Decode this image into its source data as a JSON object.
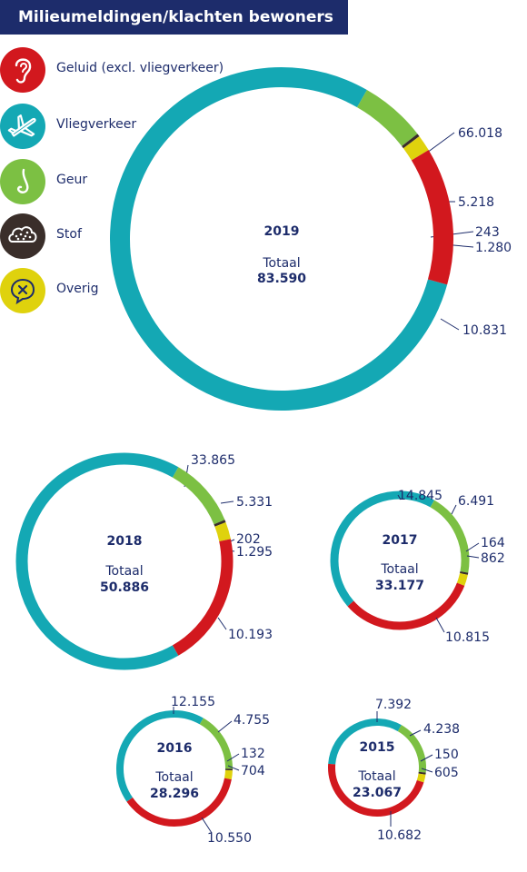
{
  "title": "Milieumeldingen/klachten bewoners",
  "legend": [
    {
      "key": "geluid",
      "label": "Geluid (excl. vliegverkeer)",
      "color": "#d2181e",
      "icon": "ear-icon"
    },
    {
      "key": "vlieg",
      "label": "Vliegverkeer",
      "color": "#14a8b4",
      "icon": "airplane-icon"
    },
    {
      "key": "geur",
      "label": "Geur",
      "color": "#7cc043",
      "icon": "nose-icon"
    },
    {
      "key": "stof",
      "label": "Stof",
      "color": "#3a2e2a",
      "icon": "dust-cloud-icon"
    },
    {
      "key": "overig",
      "label": "Overig",
      "color": "#dfd20d",
      "icon": "speech-bubble-x-icon"
    }
  ],
  "total_label": "Totaal",
  "chart_data": [
    {
      "type": "pie",
      "year": "2019",
      "total": "83.590",
      "series": [
        {
          "name": "Vliegverkeer",
          "value": 66018,
          "label": "66.018"
        },
        {
          "name": "Geur",
          "value": 5218,
          "label": "5.218"
        },
        {
          "name": "Stof",
          "value": 243,
          "label": "243"
        },
        {
          "name": "Overig",
          "value": 1280,
          "label": "1.280"
        },
        {
          "name": "Geluid (excl. vliegverkeer)",
          "value": 10831,
          "label": "10.831"
        }
      ]
    },
    {
      "type": "pie",
      "year": "2018",
      "total": "50.886",
      "series": [
        {
          "name": "Vliegverkeer",
          "value": 33865,
          "label": "33.865"
        },
        {
          "name": "Geur",
          "value": 5331,
          "label": "5.331"
        },
        {
          "name": "Stof",
          "value": 202,
          "label": "202"
        },
        {
          "name": "Overig",
          "value": 1295,
          "label": "1.295"
        },
        {
          "name": "Geluid (excl. vliegverkeer)",
          "value": 10193,
          "label": "10.193"
        }
      ]
    },
    {
      "type": "pie",
      "year": "2017",
      "total": "33.177",
      "series": [
        {
          "name": "Vliegverkeer",
          "value": 14845,
          "label": "14.845"
        },
        {
          "name": "Geur",
          "value": 6491,
          "label": "6.491"
        },
        {
          "name": "Stof",
          "value": 164,
          "label": "164"
        },
        {
          "name": "Overig",
          "value": 862,
          "label": "862"
        },
        {
          "name": "Geluid (excl. vliegverkeer)",
          "value": 10815,
          "label": "10.815"
        }
      ]
    },
    {
      "type": "pie",
      "year": "2016",
      "total": "28.296",
      "series": [
        {
          "name": "Vliegverkeer",
          "value": 12155,
          "label": "12.155"
        },
        {
          "name": "Geur",
          "value": 4755,
          "label": "4.755"
        },
        {
          "name": "Stof",
          "value": 132,
          "label": "132"
        },
        {
          "name": "Overig",
          "value": 704,
          "label": "704"
        },
        {
          "name": "Geluid (excl. vliegverkeer)",
          "value": 10550,
          "label": "10.550"
        }
      ]
    },
    {
      "type": "pie",
      "year": "2015",
      "total": "23.067",
      "series": [
        {
          "name": "Vliegverkeer",
          "value": 7392,
          "label": "7.392"
        },
        {
          "name": "Geur",
          "value": 4238,
          "label": "4.238"
        },
        {
          "name": "Stof",
          "value": 150,
          "label": "150"
        },
        {
          "name": "Overig",
          "value": 605,
          "label": "605"
        },
        {
          "name": "Geluid (excl. vliegverkeer)",
          "value": 10682,
          "label": "10.682"
        }
      ]
    }
  ]
}
